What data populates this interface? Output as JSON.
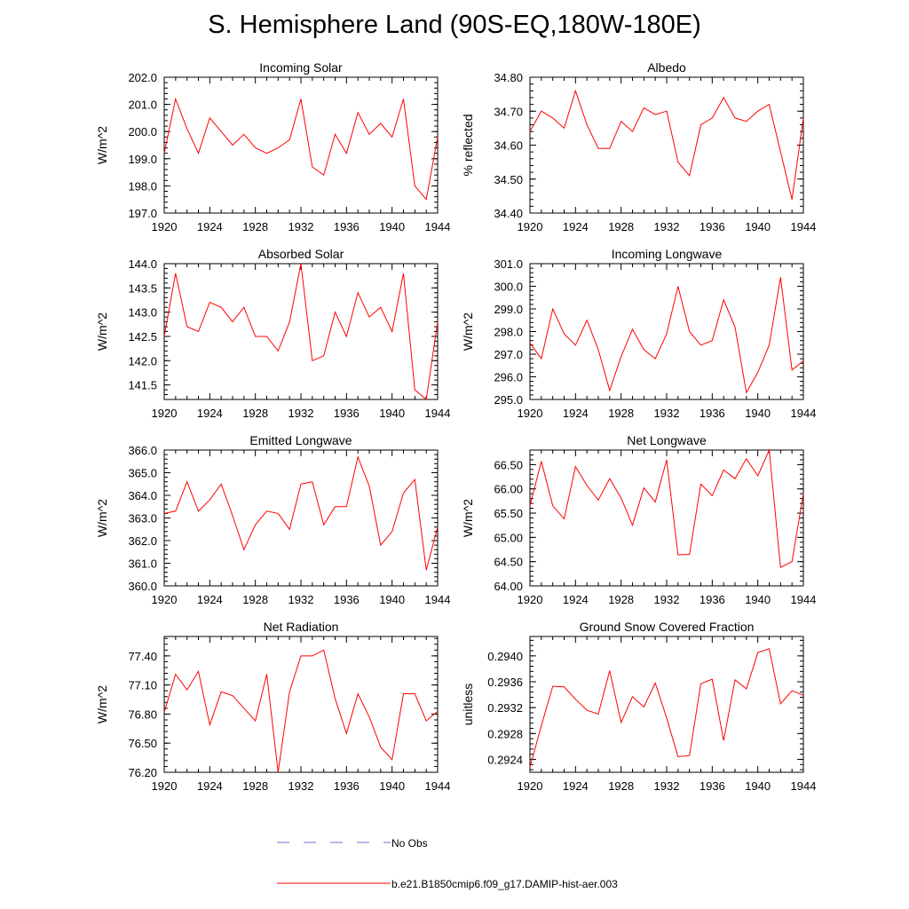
{
  "title": "S. Hemisphere Land (90S-EQ,180W-180E)",
  "legend": {
    "obs_label": "No Obs",
    "obs_color": "#7070c8",
    "model_label": "b.e21.B1850cmip6.f09_g17.DAMIP-hist-aer.003",
    "model_color": "#ff0000"
  },
  "chart_data": [
    {
      "type": "line",
      "title": "Incoming Solar",
      "ylabel": "W/m^2",
      "xlim": [
        1920,
        1944
      ],
      "ylim": [
        197.0,
        202.0
      ],
      "xticks": [
        "1920",
        "1924",
        "1928",
        "1932",
        "1936",
        "1940",
        "1944"
      ],
      "yticks": [
        "197.0",
        "198.0",
        "199.0",
        "200.0",
        "201.0",
        "202.0"
      ],
      "x": [
        1920,
        1921,
        1922,
        1923,
        1924,
        1925,
        1926,
        1927,
        1928,
        1929,
        1930,
        1931,
        1932,
        1933,
        1934,
        1935,
        1936,
        1937,
        1938,
        1939,
        1940,
        1941,
        1942,
        1943,
        1944
      ],
      "series": [
        {
          "values": [
            199.2,
            201.2,
            200.1,
            199.2,
            200.5,
            200.0,
            199.5,
            199.9,
            199.4,
            199.2,
            199.4,
            199.7,
            201.2,
            198.7,
            198.4,
            199.9,
            199.2,
            200.7,
            199.9,
            200.3,
            199.8,
            201.2,
            198.0,
            197.5,
            199.8
          ]
        }
      ]
    },
    {
      "type": "line",
      "title": "Albedo",
      "ylabel": "% reflected",
      "xlim": [
        1920,
        1944
      ],
      "ylim": [
        34.4,
        34.8
      ],
      "xticks": [
        "1920",
        "1924",
        "1928",
        "1932",
        "1936",
        "1940",
        "1944"
      ],
      "yticks": [
        "34.40",
        "34.50",
        "34.60",
        "34.70",
        "34.80"
      ],
      "x": [
        1920,
        1921,
        1922,
        1923,
        1924,
        1925,
        1926,
        1927,
        1928,
        1929,
        1930,
        1931,
        1932,
        1933,
        1934,
        1935,
        1936,
        1937,
        1938,
        1939,
        1940,
        1941,
        1942,
        1943,
        1944
      ],
      "series": [
        {
          "values": [
            34.64,
            34.7,
            34.68,
            34.65,
            34.76,
            34.66,
            34.59,
            34.59,
            34.67,
            34.64,
            34.71,
            34.69,
            34.7,
            34.55,
            34.51,
            34.66,
            34.68,
            34.74,
            34.68,
            34.67,
            34.7,
            34.72,
            34.58,
            34.44,
            34.68
          ]
        }
      ]
    },
    {
      "type": "line",
      "title": "Absorbed Solar",
      "ylabel": "W/m^2",
      "xlim": [
        1920,
        1944
      ],
      "ylim": [
        141.2,
        144.0
      ],
      "xticks": [
        "1920",
        "1924",
        "1928",
        "1932",
        "1936",
        "1940",
        "1944"
      ],
      "yticks": [
        "141.5",
        "142.0",
        "142.5",
        "143.0",
        "143.5",
        "144.0"
      ],
      "x": [
        1920,
        1921,
        1922,
        1923,
        1924,
        1925,
        1926,
        1927,
        1928,
        1929,
        1930,
        1931,
        1932,
        1933,
        1934,
        1935,
        1936,
        1937,
        1938,
        1939,
        1940,
        1941,
        1942,
        1943,
        1944
      ],
      "series": [
        {
          "values": [
            142.5,
            143.8,
            142.7,
            142.6,
            143.2,
            143.1,
            142.8,
            143.1,
            142.5,
            142.5,
            142.2,
            142.8,
            144.0,
            142.0,
            142.1,
            143.0,
            142.5,
            143.4,
            142.9,
            143.1,
            142.6,
            143.8,
            141.4,
            141.2,
            142.8
          ]
        }
      ]
    },
    {
      "type": "line",
      "title": "Incoming Longwave",
      "ylabel": "W/m^2",
      "xlim": [
        1920,
        1944
      ],
      "ylim": [
        295.0,
        301.0
      ],
      "xticks": [
        "1920",
        "1924",
        "1928",
        "1932",
        "1936",
        "1940",
        "1944"
      ],
      "yticks": [
        "295.0",
        "296.0",
        "297.0",
        "298.0",
        "299.0",
        "300.0",
        "301.0"
      ],
      "x": [
        1920,
        1921,
        1922,
        1923,
        1924,
        1925,
        1926,
        1927,
        1928,
        1929,
        1930,
        1931,
        1932,
        1933,
        1934,
        1935,
        1936,
        1937,
        1938,
        1939,
        1940,
        1941,
        1942,
        1943,
        1944
      ],
      "series": [
        {
          "values": [
            297.5,
            296.8,
            299.0,
            297.9,
            297.4,
            298.5,
            297.2,
            295.4,
            296.9,
            298.1,
            297.2,
            296.8,
            297.9,
            300.0,
            298.0,
            297.4,
            297.6,
            299.4,
            298.2,
            295.3,
            296.2,
            297.4,
            300.4,
            296.3,
            296.7
          ]
        }
      ]
    },
    {
      "type": "line",
      "title": "Emitted Longwave",
      "ylabel": "W/m^2",
      "xlim": [
        1920,
        1944
      ],
      "ylim": [
        360.0,
        366.0
      ],
      "xticks": [
        "1920",
        "1924",
        "1928",
        "1932",
        "1936",
        "1940",
        "1944"
      ],
      "yticks": [
        "360.0",
        "361.0",
        "362.0",
        "363.0",
        "364.0",
        "365.0",
        "366.0"
      ],
      "x": [
        1920,
        1921,
        1922,
        1923,
        1924,
        1925,
        1926,
        1927,
        1928,
        1929,
        1930,
        1931,
        1932,
        1933,
        1934,
        1935,
        1936,
        1937,
        1938,
        1939,
        1940,
        1941,
        1942,
        1943,
        1944
      ],
      "series": [
        {
          "values": [
            363.2,
            363.3,
            364.6,
            363.3,
            363.8,
            364.5,
            363.1,
            361.6,
            362.7,
            363.3,
            363.2,
            362.5,
            364.5,
            364.6,
            362.7,
            363.5,
            363.5,
            365.7,
            364.4,
            361.8,
            362.4,
            364.1,
            364.7,
            360.7,
            362.6
          ]
        }
      ]
    },
    {
      "type": "line",
      "title": "Net Longwave",
      "ylabel": "W/m^2",
      "xlim": [
        1920,
        1944
      ],
      "ylim": [
        64.0,
        66.8
      ],
      "xticks": [
        "1920",
        "1924",
        "1928",
        "1932",
        "1936",
        "1940",
        "1944"
      ],
      "yticks": [
        "64.00",
        "64.50",
        "65.00",
        "65.50",
        "66.00",
        "66.50"
      ],
      "x": [
        1920,
        1921,
        1922,
        1923,
        1924,
        1925,
        1926,
        1927,
        1928,
        1929,
        1930,
        1931,
        1932,
        1933,
        1934,
        1935,
        1936,
        1937,
        1938,
        1939,
        1940,
        1941,
        1942,
        1943,
        1944
      ],
      "series": [
        {
          "values": [
            65.65,
            66.57,
            65.65,
            65.38,
            66.46,
            66.07,
            65.77,
            66.21,
            65.81,
            65.25,
            66.02,
            65.73,
            66.6,
            64.64,
            64.65,
            66.1,
            65.86,
            66.39,
            66.21,
            66.62,
            66.27,
            66.8,
            64.38,
            64.5,
            65.9
          ]
        }
      ]
    },
    {
      "type": "line",
      "title": "Net Radiation",
      "ylabel": "W/m^2",
      "xlim": [
        1920,
        1944
      ],
      "ylim": [
        76.2,
        77.6
      ],
      "xticks": [
        "1920",
        "1924",
        "1928",
        "1932",
        "1936",
        "1940",
        "1944"
      ],
      "yticks": [
        "76.20",
        "76.50",
        "76.80",
        "77.10",
        "77.40"
      ],
      "x": [
        1920,
        1921,
        1922,
        1923,
        1924,
        1925,
        1926,
        1927,
        1928,
        1929,
        1930,
        1931,
        1932,
        1933,
        1934,
        1935,
        1936,
        1937,
        1938,
        1939,
        1940,
        1941,
        1942,
        1943,
        1944
      ],
      "series": [
        {
          "values": [
            76.82,
            77.21,
            77.05,
            77.24,
            76.69,
            77.03,
            76.99,
            76.86,
            76.73,
            77.21,
            76.2,
            77.03,
            77.4,
            77.4,
            77.46,
            76.96,
            76.6,
            77.01,
            76.77,
            76.46,
            76.33,
            77.01,
            77.01,
            76.73,
            76.83
          ]
        }
      ]
    },
    {
      "type": "line",
      "title": "Ground Snow Covered Fraction",
      "ylabel": "unitless",
      "xlim": [
        1920,
        1944
      ],
      "ylim": [
        0.2922,
        0.2943
      ],
      "xticks": [
        "1920",
        "1924",
        "1928",
        "1932",
        "1936",
        "1940",
        "1944"
      ],
      "yticks": [
        "0.2924",
        "0.2928",
        "0.2932",
        "0.2936",
        "0.2940"
      ],
      "x": [
        1920,
        1921,
        1922,
        1923,
        1924,
        1925,
        1926,
        1927,
        1928,
        1929,
        1930,
        1931,
        1932,
        1933,
        1934,
        1935,
        1936,
        1937,
        1938,
        1939,
        1940,
        1941,
        1942,
        1943,
        1944
      ],
      "series": [
        {
          "values": [
            0.29228,
            0.29292,
            0.29353,
            0.29352,
            0.29333,
            0.29316,
            0.2931,
            0.29377,
            0.29297,
            0.29337,
            0.29321,
            0.29358,
            0.29304,
            0.29244,
            0.29246,
            0.29357,
            0.29364,
            0.29269,
            0.29363,
            0.29349,
            0.29405,
            0.29411,
            0.29326,
            0.29346,
            0.29339
          ]
        }
      ]
    }
  ]
}
